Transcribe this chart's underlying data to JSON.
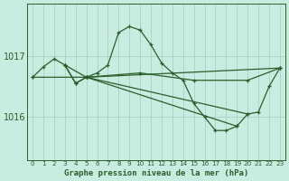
{
  "title": "Graphe pression niveau de la mer (hPa)",
  "background_color": "#c8ece0",
  "grid_color": "#a0ccbc",
  "line_color": "#2a5e2a",
  "yticks": [
    1016,
    1017
  ],
  "ylim": [
    1015.3,
    1017.85
  ],
  "xlim": [
    -0.5,
    23.5
  ],
  "series_main": {
    "x": [
      0,
      1,
      2,
      3,
      4,
      5,
      6,
      7,
      8,
      9,
      10,
      11,
      12,
      13,
      14,
      15,
      16,
      17,
      18,
      19,
      20,
      21,
      22,
      23
    ],
    "y": [
      1016.65,
      1016.82,
      1016.95,
      1016.85,
      1016.55,
      1016.65,
      1016.72,
      1016.85,
      1017.38,
      1017.48,
      1017.42,
      1017.18,
      1016.88,
      1016.72,
      1016.6,
      1016.22,
      1016.0,
      1015.78,
      1015.78,
      1015.85,
      1016.05,
      1016.08,
      1016.5,
      1016.8
    ]
  },
  "series_flat": {
    "x": [
      5,
      10,
      15,
      20,
      23
    ],
    "y": [
      1016.65,
      1016.72,
      1016.6,
      1016.6,
      1016.8
    ]
  },
  "series_diagonal1": {
    "x": [
      5,
      19
    ],
    "y": [
      1016.65,
      1015.85
    ]
  },
  "series_diagonal2": {
    "x": [
      5,
      20
    ],
    "y": [
      1016.65,
      1016.05
    ]
  },
  "series_triangle": {
    "x": [
      3,
      4,
      5,
      3
    ],
    "y": [
      1016.85,
      1016.55,
      1016.65,
      1016.85
    ]
  },
  "series_long_flat": {
    "x": [
      0,
      5,
      23
    ],
    "y": [
      1016.65,
      1016.65,
      1016.8
    ]
  }
}
